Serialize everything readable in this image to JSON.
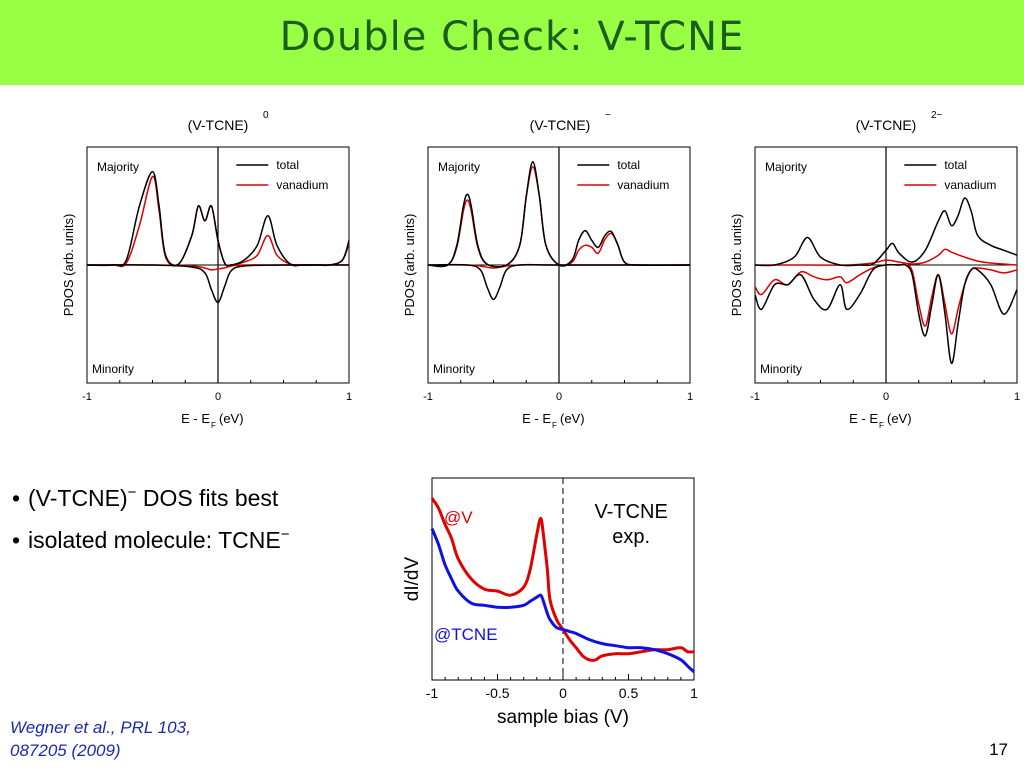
{
  "slide": {
    "title": "Double Check: V-TCNE",
    "bullets": [
      {
        "text": "(V-TCNE)",
        "sup": "−",
        "rest": " DOS fits best"
      },
      {
        "text": "isolated molecule: TCNE",
        "sup": "−",
        "rest": ""
      }
    ],
    "citation_line1": "Wegner et al., PRL 103,",
    "citation_line2": "087205 (2009)",
    "page_number": "17",
    "title_bar_color": "#99ff44",
    "title_color": "#1a5e1a"
  },
  "chart_data": [
    {
      "type": "line",
      "title": "(V-TCNE)",
      "title_sup": "0",
      "ylabel": "PDOS (arb. units)",
      "xlabel_main": "E - E",
      "xlabel_sub": "F",
      "xlabel_tail": " (eV)",
      "xlim": [
        -1,
        1
      ],
      "xticks": [
        -1,
        0,
        1
      ],
      "xtick_labels": [
        "-1",
        "0",
        "1"
      ],
      "ylim": [
        -1.2,
        1.2
      ],
      "upper_label": "Majority",
      "lower_label": "Minority",
      "legend": [
        "total",
        "vanadium"
      ],
      "legend_position": "top-right",
      "series": [
        {
          "name": "total",
          "color": "#000000",
          "x": [
            -1,
            -0.8,
            -0.7,
            -0.6,
            -0.5,
            -0.45,
            -0.4,
            -0.3,
            -0.2,
            -0.15,
            -0.1,
            -0.05,
            0,
            0.05,
            0.1,
            0.2,
            0.3,
            0.38,
            0.45,
            0.55,
            0.65,
            0.75,
            0.85,
            0.95,
            1
          ],
          "y": [
            0,
            0,
            0.05,
            0.6,
            0.95,
            0.6,
            0.1,
            0.01,
            0.3,
            0.6,
            0.45,
            0.6,
            0.25,
            0.02,
            0,
            0.05,
            0.2,
            0.5,
            0.2,
            0.01,
            0,
            0,
            0,
            0.05,
            0.25
          ]
        },
        {
          "name": "vanadium",
          "color": "#dd0000",
          "x": [
            -1,
            -0.8,
            -0.7,
            -0.6,
            -0.5,
            -0.45,
            -0.4,
            -0.3,
            -0.2,
            -0.15,
            -0.1,
            -0.05,
            0,
            0.05,
            0.1,
            0.2,
            0.3,
            0.38,
            0.45,
            0.55,
            0.65,
            0.75,
            0.85,
            0.95,
            1
          ],
          "y": [
            0,
            0,
            0.02,
            0.4,
            0.9,
            0.55,
            0.08,
            0.01,
            0.3,
            0.6,
            0.45,
            0.6,
            0.25,
            0.02,
            0,
            0.03,
            0.1,
            0.3,
            0.1,
            0.01,
            0,
            0,
            0,
            0.05,
            0.22
          ]
        },
        {
          "name": "total minority",
          "color": "#000000",
          "x": [
            -1,
            -0.5,
            -0.2,
            -0.1,
            -0.05,
            0,
            0.05,
            0.1,
            0.2,
            0.5,
            1
          ],
          "y": [
            0,
            0,
            -0.02,
            -0.08,
            -0.25,
            -0.38,
            -0.22,
            -0.06,
            -0.01,
            0,
            0
          ]
        },
        {
          "name": "vanadium minority",
          "color": "#dd0000",
          "x": [
            -1,
            -0.5,
            -0.2,
            -0.1,
            -0.05,
            0,
            0.05,
            0.1,
            0.2,
            0.5,
            1
          ],
          "y": [
            0,
            0,
            -0.01,
            -0.03,
            -0.05,
            -0.04,
            -0.03,
            -0.01,
            0,
            0,
            0
          ]
        }
      ]
    },
    {
      "type": "line",
      "title": "(V-TCNE)",
      "title_sup": "−",
      "ylabel": "PDOS (arb. units)",
      "xlabel_main": "E - E",
      "xlabel_sub": "F",
      "xlabel_tail": " (eV)",
      "xlim": [
        -1,
        1
      ],
      "xticks": [
        -1,
        0,
        1
      ],
      "xtick_labels": [
        "-1",
        "0",
        "1"
      ],
      "ylim": [
        -1.2,
        1.2
      ],
      "upper_label": "Majority",
      "lower_label": "Minority",
      "legend": [
        "total",
        "vanadium"
      ],
      "legend_position": "top-right",
      "series": [
        {
          "name": "total",
          "color": "#000000",
          "x": [
            -1,
            -0.85,
            -0.78,
            -0.73,
            -0.7,
            -0.67,
            -0.62,
            -0.55,
            -0.4,
            -0.3,
            -0.25,
            -0.2,
            -0.15,
            -0.1,
            0,
            0.1,
            0.15,
            0.2,
            0.25,
            0.3,
            0.35,
            0.4,
            0.45,
            0.5,
            0.6,
            1
          ],
          "y": [
            0,
            0,
            0.2,
            0.6,
            0.72,
            0.6,
            0.2,
            0.01,
            0,
            0.2,
            0.7,
            1.05,
            0.7,
            0.2,
            0,
            0.05,
            0.25,
            0.35,
            0.25,
            0.18,
            0.3,
            0.34,
            0.2,
            0.03,
            0,
            0
          ]
        },
        {
          "name": "vanadium",
          "color": "#dd0000",
          "x": [
            -1,
            -0.85,
            -0.78,
            -0.73,
            -0.7,
            -0.67,
            -0.62,
            -0.55,
            -0.4,
            -0.3,
            -0.25,
            -0.2,
            -0.15,
            -0.1,
            0,
            0.1,
            0.15,
            0.2,
            0.25,
            0.3,
            0.35,
            0.4,
            0.45,
            0.5,
            0.6,
            1
          ],
          "y": [
            0,
            0,
            0.18,
            0.55,
            0.66,
            0.55,
            0.18,
            0.01,
            0,
            0.2,
            0.7,
            1.0,
            0.7,
            0.2,
            0,
            0.03,
            0.15,
            0.2,
            0.18,
            0.12,
            0.26,
            0.32,
            0.2,
            0.03,
            0,
            0
          ]
        },
        {
          "name": "total minority",
          "color": "#000000",
          "x": [
            -1,
            -0.7,
            -0.6,
            -0.55,
            -0.5,
            -0.45,
            -0.4,
            -0.3,
            0,
            1
          ],
          "y": [
            0,
            0,
            -0.05,
            -0.22,
            -0.35,
            -0.22,
            -0.05,
            0,
            0,
            0
          ]
        },
        {
          "name": "vanadium minority",
          "color": "#dd0000",
          "x": [
            -1,
            -0.7,
            -0.6,
            -0.5,
            -0.4,
            -0.3,
            0,
            1
          ],
          "y": [
            0,
            0,
            -0.01,
            -0.03,
            -0.01,
            0,
            0,
            0
          ]
        }
      ]
    },
    {
      "type": "line",
      "title": "(V-TCNE)",
      "title_sup": "2−",
      "ylabel": "PDOS (arb. units)",
      "xlabel_main": "E - E",
      "xlabel_sub": "F",
      "xlabel_tail": " (eV)",
      "xlim": [
        -1,
        1
      ],
      "xticks": [
        -1,
        0,
        1
      ],
      "xtick_labels": [
        "-1",
        "0",
        "1"
      ],
      "ylim": [
        -1.2,
        1.2
      ],
      "upper_label": "Majority",
      "lower_label": "Minority",
      "legend": [
        "total",
        "vanadium"
      ],
      "legend_position": "top-right",
      "series": [
        {
          "name": "total",
          "color": "#000000",
          "x": [
            -1,
            -0.85,
            -0.7,
            -0.6,
            -0.5,
            -0.35,
            -0.2,
            -0.1,
            0,
            0.05,
            0.1,
            0.2,
            0.3,
            0.4,
            0.45,
            0.5,
            0.55,
            0.6,
            0.65,
            0.7,
            0.8,
            0.9,
            1
          ],
          "y": [
            0,
            0,
            0.08,
            0.28,
            0.08,
            0,
            0,
            0.01,
            0.15,
            0.22,
            0.12,
            0.03,
            0.15,
            0.45,
            0.55,
            0.4,
            0.5,
            0.68,
            0.55,
            0.3,
            0.2,
            0.15,
            0.1
          ]
        },
        {
          "name": "vanadium",
          "color": "#dd0000",
          "x": [
            -1,
            -0.6,
            -0.3,
            -0.1,
            0,
            0.1,
            0.2,
            0.3,
            0.4,
            0.45,
            0.5,
            0.6,
            0.7,
            0.8,
            1
          ],
          "y": [
            0,
            0,
            0,
            0.02,
            0.05,
            0.03,
            0.01,
            0.03,
            0.1,
            0.16,
            0.13,
            0.08,
            0.04,
            0.02,
            0
          ]
        },
        {
          "name": "total minority",
          "color": "#000000",
          "x": [
            -1,
            -0.95,
            -0.85,
            -0.75,
            -0.65,
            -0.55,
            -0.45,
            -0.35,
            -0.3,
            -0.2,
            -0.1,
            0,
            0.1,
            0.15,
            0.2,
            0.25,
            0.3,
            0.35,
            0.4,
            0.45,
            0.5,
            0.55,
            0.6,
            0.65,
            0.7,
            0.8,
            0.9,
            1
          ],
          "y": [
            -0.3,
            -0.45,
            -0.2,
            -0.2,
            -0.1,
            -0.35,
            -0.45,
            -0.2,
            -0.45,
            -0.3,
            -0.05,
            0,
            0,
            0,
            -0.1,
            -0.5,
            -0.72,
            -0.4,
            -0.1,
            -0.5,
            -1.0,
            -0.6,
            -0.2,
            -0.05,
            -0.05,
            -0.2,
            -0.5,
            -0.25
          ]
        },
        {
          "name": "vanadium minority",
          "color": "#dd0000",
          "x": [
            -1,
            -0.95,
            -0.85,
            -0.75,
            -0.65,
            -0.55,
            -0.45,
            -0.35,
            -0.3,
            -0.2,
            -0.1,
            0,
            0.1,
            0.15,
            0.2,
            0.25,
            0.3,
            0.35,
            0.4,
            0.45,
            0.5,
            0.55,
            0.6,
            0.65,
            0.7,
            0.8,
            0.9,
            1
          ],
          "y": [
            -0.22,
            -0.3,
            -0.15,
            -0.2,
            -0.07,
            -0.12,
            -0.15,
            -0.12,
            -0.18,
            -0.1,
            -0.03,
            0,
            0,
            0,
            -0.06,
            -0.4,
            -0.62,
            -0.32,
            -0.1,
            -0.4,
            -0.7,
            -0.45,
            -0.2,
            -0.05,
            -0.03,
            -0.05,
            -0.08,
            -0.05
          ]
        }
      ]
    },
    {
      "type": "line",
      "title": "",
      "annotation": "V-TCNE",
      "annotation2": "exp.",
      "ylabel": "dI/dV",
      "xlabel": "sample bias (V)",
      "xlim": [
        -1,
        1
      ],
      "xticks": [
        -1,
        -0.5,
        0,
        0.5,
        1
      ],
      "xtick_labels": [
        "-1",
        "-0.5",
        "0",
        "0.5",
        "1"
      ],
      "ylim": [
        0,
        1
      ],
      "series": [
        {
          "name": "@V",
          "color": "#e00000",
          "x": [
            -1,
            -0.95,
            -0.9,
            -0.85,
            -0.8,
            -0.7,
            -0.6,
            -0.5,
            -0.4,
            -0.3,
            -0.25,
            -0.2,
            -0.17,
            -0.15,
            -0.12,
            -0.1,
            -0.05,
            0,
            0.05,
            0.1,
            0.15,
            0.2,
            0.25,
            0.3,
            0.4,
            0.5,
            0.6,
            0.7,
            0.8,
            0.9,
            0.95,
            1
          ],
          "y": [
            0.9,
            0.85,
            0.77,
            0.7,
            0.6,
            0.5,
            0.45,
            0.44,
            0.42,
            0.46,
            0.55,
            0.72,
            0.8,
            0.72,
            0.55,
            0.4,
            0.3,
            0.25,
            0.2,
            0.16,
            0.12,
            0.1,
            0.1,
            0.12,
            0.13,
            0.13,
            0.14,
            0.15,
            0.15,
            0.16,
            0.14,
            0.14
          ]
        },
        {
          "name": "@TCNE",
          "color": "#1010e0",
          "x": [
            -1,
            -0.95,
            -0.9,
            -0.85,
            -0.8,
            -0.7,
            -0.6,
            -0.5,
            -0.4,
            -0.3,
            -0.25,
            -0.2,
            -0.17,
            -0.15,
            -0.12,
            -0.1,
            -0.05,
            0,
            0.05,
            0.1,
            0.2,
            0.3,
            0.4,
            0.5,
            0.6,
            0.7,
            0.8,
            0.9,
            0.95,
            1
          ],
          "y": [
            0.75,
            0.67,
            0.57,
            0.5,
            0.44,
            0.38,
            0.37,
            0.36,
            0.36,
            0.37,
            0.39,
            0.41,
            0.42,
            0.39,
            0.33,
            0.3,
            0.26,
            0.25,
            0.24,
            0.23,
            0.2,
            0.18,
            0.17,
            0.16,
            0.16,
            0.15,
            0.13,
            0.1,
            0.07,
            0.04
          ]
        }
      ],
      "vline_dashed_at": 0
    }
  ]
}
